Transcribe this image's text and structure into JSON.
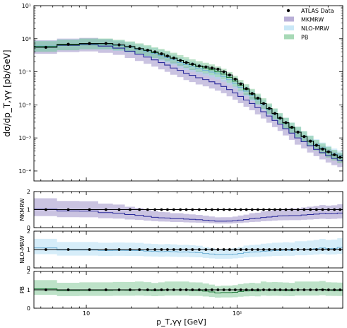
{
  "chart_data": {
    "type": "step",
    "xlabel": "p_T,γγ [GeV]",
    "xscale": "log",
    "xlim": [
      4.5,
      500
    ],
    "x_ticks": [
      {
        "value": 10,
        "label": "10"
      },
      {
        "value": 100,
        "label": "10²"
      }
    ],
    "main_panel": {
      "ylabel": "dσ/dp_T,γγ [pb/GeV]",
      "yscale": "log",
      "ylim": [
        5e-05,
        10
      ],
      "y_ticks": [
        {
          "value": 0.0001,
          "label": "10⁻⁴"
        },
        {
          "value": 0.001,
          "label": "10⁻³"
        },
        {
          "value": 0.01,
          "label": "10⁻²"
        },
        {
          "value": 0.1,
          "label": "10⁻¹"
        },
        {
          "value": 1,
          "label": "10⁰"
        },
        {
          "value": 10,
          "label": "10¹"
        }
      ],
      "legend_position": "top-right",
      "edges": [
        4.5,
        6.4,
        9,
        12,
        15,
        18,
        21,
        24,
        27,
        30,
        33,
        36,
        40,
        44,
        48,
        53,
        59,
        65,
        71,
        78,
        85,
        93,
        101,
        110,
        120,
        131,
        143,
        156,
        170,
        185,
        200,
        220,
        240,
        265,
        290,
        320,
        350,
        385,
        420,
        460,
        500
      ],
      "series": [
        {
          "name": "ATLAS Data",
          "kind": "points",
          "color": "#000000",
          "x": [
            5.4,
            7.6,
            10.5,
            13.5,
            16.5,
            19.5,
            22.5,
            25.5,
            28.5,
            31.5,
            34.5,
            38,
            42,
            46,
            50.5,
            56,
            62,
            68,
            74.5,
            81.5,
            89,
            97,
            105.5,
            115,
            125.5,
            137,
            149.5,
            163,
            177.5,
            192.5,
            210,
            230,
            252.5,
            277.5,
            305,
            335,
            367.5,
            402.5,
            440,
            480
          ],
          "y": [
            0.55,
            0.68,
            0.72,
            0.72,
            0.65,
            0.58,
            0.5,
            0.45,
            0.4,
            0.35,
            0.3,
            0.26,
            0.22,
            0.19,
            0.17,
            0.15,
            0.14,
            0.13,
            0.12,
            0.1,
            0.08,
            0.06,
            0.043,
            0.031,
            0.022,
            0.016,
            0.011,
            0.0078,
            0.0055,
            0.004,
            0.0029,
            0.0021,
            0.0015,
            0.0011,
            0.0008,
            0.0006,
            0.00046,
            0.00038,
            0.00031,
            0.00026
          ]
        },
        {
          "name": "MKMRW",
          "kind": "band",
          "color": "#8a79bd",
          "line_color": "#2a2a9a",
          "y": [
            0.56,
            0.63,
            0.66,
            0.6,
            0.52,
            0.42,
            0.34,
            0.28,
            0.23,
            0.19,
            0.16,
            0.13,
            0.11,
            0.09,
            0.078,
            0.066,
            0.058,
            0.05,
            0.043,
            0.036,
            0.029,
            0.023,
            0.018,
            0.014,
            0.011,
            0.0083,
            0.0062,
            0.0046,
            0.0034,
            0.0026,
            0.0019,
            0.0014,
            0.001,
            0.00077,
            0.00058,
            0.00045,
            0.00036,
            0.00029,
            0.00024,
            0.00021
          ],
          "band_factor": 1.6
        },
        {
          "name": "NLO-MRW",
          "kind": "band",
          "color": "#a5d8f2",
          "line_color": "#6fb1d6",
          "y": [
            0.6,
            0.66,
            0.7,
            0.68,
            0.62,
            0.55,
            0.47,
            0.41,
            0.36,
            0.31,
            0.27,
            0.23,
            0.19,
            0.165,
            0.145,
            0.125,
            0.11,
            0.098,
            0.086,
            0.072,
            0.058,
            0.045,
            0.034,
            0.026,
            0.019,
            0.014,
            0.01,
            0.0072,
            0.0052,
            0.0038,
            0.0028,
            0.002,
            0.0015,
            0.0011,
            0.00082,
            0.00063,
            0.0005,
            0.0004,
            0.00033,
            0.00029
          ],
          "band_factor": 1.45
        },
        {
          "name": "PB",
          "kind": "band",
          "color": "#6cbf85",
          "line_color": "#1f7a3a",
          "y": [
            0.58,
            0.65,
            0.7,
            0.7,
            0.64,
            0.57,
            0.5,
            0.44,
            0.38,
            0.34,
            0.3,
            0.26,
            0.22,
            0.19,
            0.165,
            0.145,
            0.13,
            0.115,
            0.1,
            0.085,
            0.068,
            0.052,
            0.039,
            0.029,
            0.021,
            0.015,
            0.011,
            0.0076,
            0.0054,
            0.0039,
            0.0028,
            0.002,
            0.0015,
            0.0011,
            0.0008,
            0.0006,
            0.00047,
            0.00037,
            0.0003,
            0.00025
          ],
          "band_factor": 1.45
        }
      ]
    },
    "ratio_panels": [
      {
        "ylabel": "MKMRW",
        "ylim": [
          0,
          2
        ],
        "y_ticks": [
          0,
          1,
          2
        ],
        "series": "MKMRW"
      },
      {
        "ylabel": "NLO-MRW",
        "ylim": [
          0,
          2
        ],
        "y_ticks": [
          0,
          1,
          2
        ],
        "series": "NLO-MRW"
      },
      {
        "ylabel": "PB",
        "ylim": [
          0,
          2
        ],
        "y_ticks": [
          0,
          1,
          2
        ],
        "series": "PB"
      }
    ]
  }
}
